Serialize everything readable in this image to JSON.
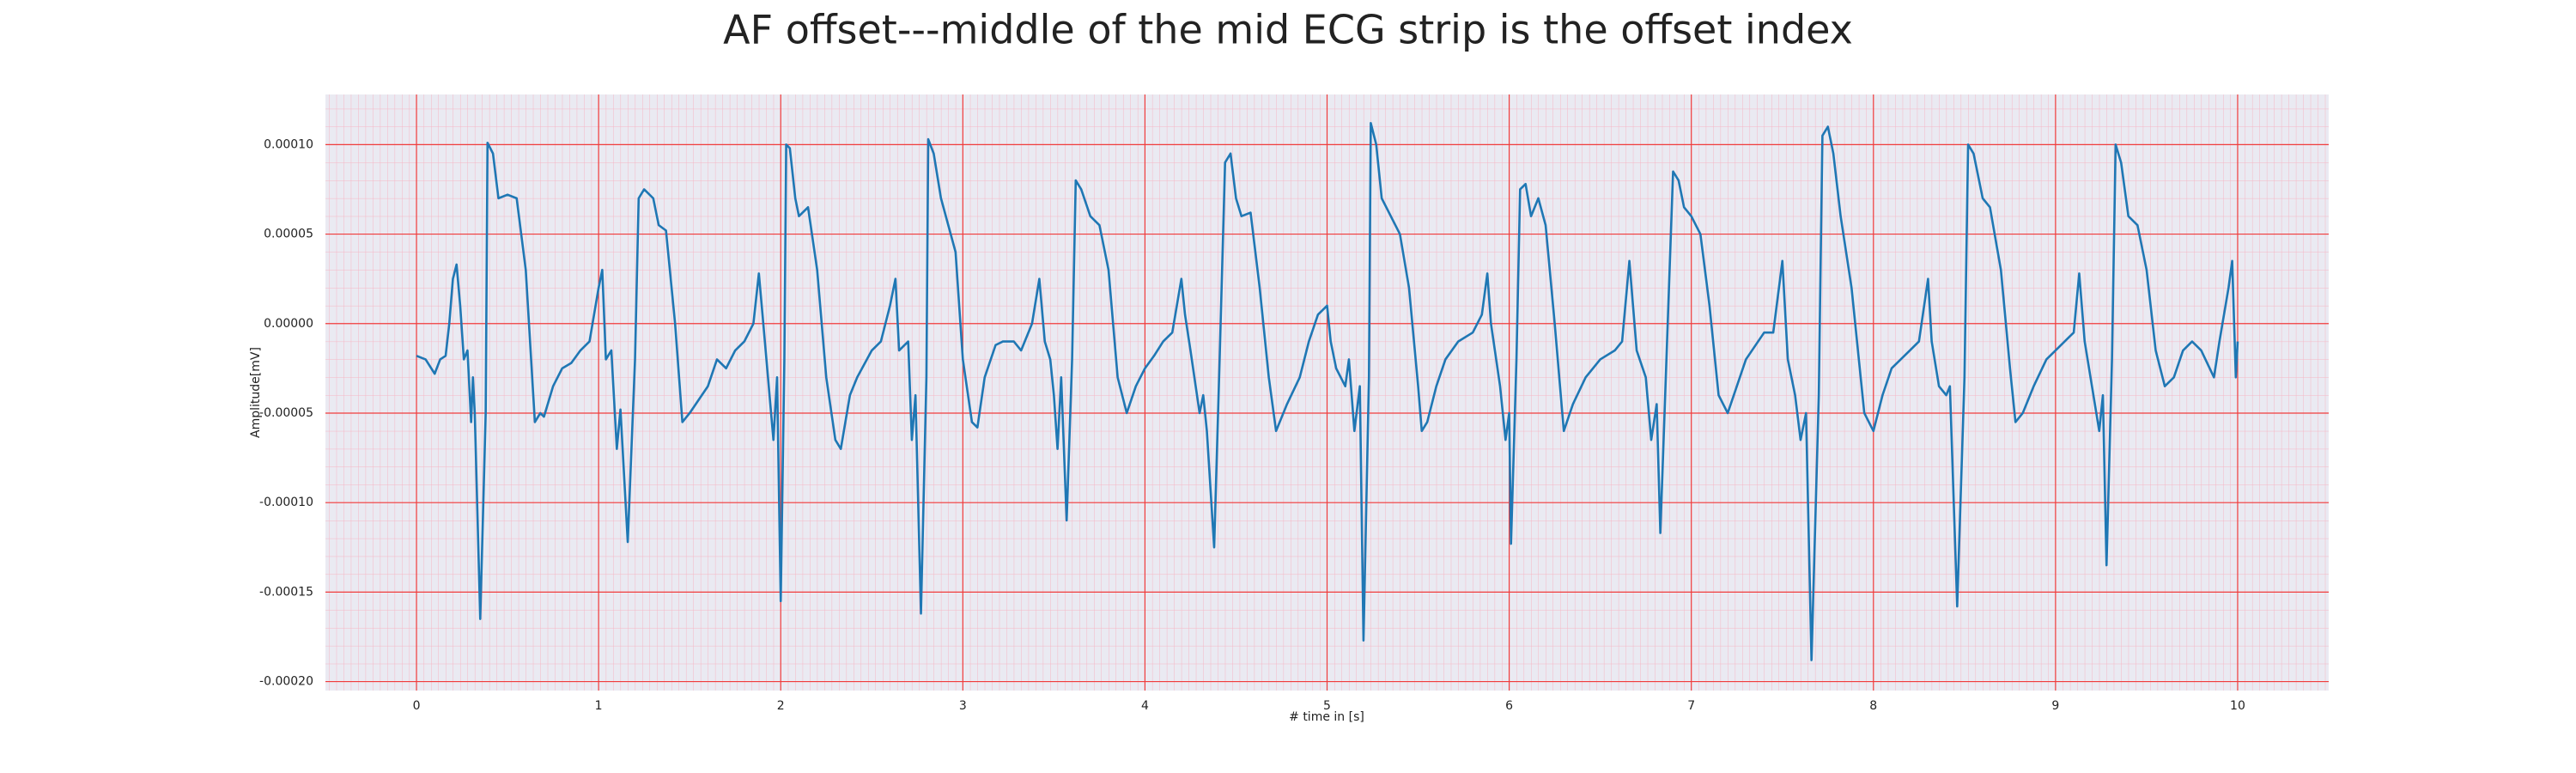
{
  "chart_data": {
    "type": "line",
    "title": "AF offset---middle of the mid ECG strip is the offset index",
    "x_label": "# time in [s]",
    "y_label": "Amplitude[mV]",
    "color": "#1f77b4",
    "grid": true,
    "minor_grid": true,
    "xlim": [
      -0.5,
      10.5
    ],
    "ylim": [
      -0.000205,
      0.000128
    ],
    "xticks": [
      0,
      1,
      2,
      3,
      4,
      5,
      6,
      7,
      8,
      9,
      10
    ],
    "yticks": [
      {
        "value": 0.0001,
        "label": "0.00010"
      },
      {
        "value": 5e-05,
        "label": "0.00005"
      },
      {
        "value": 0,
        "label": "0.00000"
      },
      {
        "value": -5e-05,
        "label": "-0.00005"
      },
      {
        "value": -0.0001,
        "label": "-0.00010"
      },
      {
        "value": -0.00015,
        "label": "-0.00015"
      },
      {
        "value": -0.0002,
        "label": "-0.00020"
      }
    ],
    "x": [
      0.0,
      0.05,
      0.1,
      0.13,
      0.16,
      0.18,
      0.2,
      0.22,
      0.24,
      0.26,
      0.28,
      0.3,
      0.31,
      0.32,
      0.35,
      0.38,
      0.39,
      0.42,
      0.45,
      0.5,
      0.55,
      0.6,
      0.65,
      0.68,
      0.7,
      0.75,
      0.8,
      0.85,
      0.9,
      0.95,
      1.0,
      1.02,
      1.04,
      1.07,
      1.1,
      1.12,
      1.16,
      1.2,
      1.22,
      1.25,
      1.3,
      1.33,
      1.37,
      1.42,
      1.46,
      1.5,
      1.6,
      1.65,
      1.7,
      1.75,
      1.8,
      1.85,
      1.88,
      1.9,
      1.93,
      1.96,
      1.98,
      2.0,
      2.02,
      2.03,
      2.05,
      2.08,
      2.1,
      2.15,
      2.2,
      2.25,
      2.3,
      2.33,
      2.38,
      2.42,
      2.5,
      2.55,
      2.6,
      2.63,
      2.65,
      2.7,
      2.72,
      2.74,
      2.77,
      2.8,
      2.81,
      2.84,
      2.88,
      2.92,
      2.96,
      3.0,
      3.05,
      3.08,
      3.12,
      3.18,
      3.22,
      3.28,
      3.32,
      3.38,
      3.42,
      3.45,
      3.48,
      3.5,
      3.52,
      3.54,
      3.57,
      3.6,
      3.62,
      3.65,
      3.7,
      3.75,
      3.8,
      3.85,
      3.9,
      3.95,
      4.0,
      4.05,
      4.1,
      4.15,
      4.2,
      4.22,
      4.25,
      4.3,
      4.32,
      4.34,
      4.38,
      4.41,
      4.44,
      4.47,
      4.5,
      4.53,
      4.58,
      4.63,
      4.68,
      4.72,
      4.78,
      4.85,
      4.9,
      4.95,
      5.0,
      5.02,
      5.05,
      5.1,
      5.12,
      5.15,
      5.18,
      5.2,
      5.23,
      5.24,
      5.27,
      5.3,
      5.35,
      5.4,
      5.45,
      5.5,
      5.52,
      5.55,
      5.6,
      5.65,
      5.72,
      5.8,
      5.85,
      5.88,
      5.9,
      5.95,
      5.98,
      6.0,
      6.01,
      6.04,
      6.06,
      6.09,
      6.12,
      6.16,
      6.2,
      6.25,
      6.3,
      6.35,
      6.42,
      6.5,
      6.58,
      6.62,
      6.66,
      6.7,
      6.75,
      6.78,
      6.81,
      6.83,
      6.86,
      6.9,
      6.93,
      6.96,
      7.0,
      7.05,
      7.1,
      7.15,
      7.2,
      7.3,
      7.4,
      7.45,
      7.5,
      7.53,
      7.57,
      7.6,
      7.63,
      7.66,
      7.7,
      7.72,
      7.75,
      7.78,
      7.82,
      7.88,
      7.95,
      8.0,
      8.05,
      8.1,
      8.2,
      8.25,
      8.3,
      8.32,
      8.36,
      8.4,
      8.42,
      8.46,
      8.5,
      8.52,
      8.55,
      8.6,
      8.64,
      8.7,
      8.75,
      8.78,
      8.82,
      8.88,
      8.95,
      9.0,
      9.05,
      9.1,
      9.13,
      9.16,
      9.2,
      9.24,
      9.26,
      9.28,
      9.31,
      9.33,
      9.36,
      9.4,
      9.45,
      9.5,
      9.55,
      9.6,
      9.65,
      9.7,
      9.75,
      9.8,
      9.87,
      9.9,
      9.95,
      9.97,
      9.99,
      10.0
    ],
    "values": [
      -1.8e-05,
      -2e-05,
      -2.8e-05,
      -2e-05,
      -1.8e-05,
      0.0,
      2.5e-05,
      3.3e-05,
      1e-05,
      -2e-05,
      -1.5e-05,
      -5.5e-05,
      -3e-05,
      -5e-05,
      -0.000165,
      -5e-05,
      0.000101,
      9.5e-05,
      7e-05,
      7.2e-05,
      7e-05,
      3e-05,
      -5.5e-05,
      -5e-05,
      -5.2e-05,
      -3.5e-05,
      -2.5e-05,
      -2.2e-05,
      -1.5e-05,
      -1e-05,
      2e-05,
      3e-05,
      -2e-05,
      -1.5e-05,
      -7e-05,
      -4.8e-05,
      -0.000122,
      -2e-05,
      7e-05,
      7.5e-05,
      7e-05,
      5.5e-05,
      5.2e-05,
      0.0,
      -5.5e-05,
      -5e-05,
      -3.5e-05,
      -2e-05,
      -2.5e-05,
      -1.5e-05,
      -1e-05,
      0.0,
      2.8e-05,
      5e-06,
      -3e-05,
      -6.5e-05,
      -3e-05,
      -0.000155,
      -2e-05,
      0.0001,
      9.8e-05,
      7e-05,
      6e-05,
      6.5e-05,
      3e-05,
      -3e-05,
      -6.5e-05,
      -7e-05,
      -4e-05,
      -3e-05,
      -1.5e-05,
      -1e-05,
      1e-05,
      2.5e-05,
      -1.5e-05,
      -1e-05,
      -6.5e-05,
      -4e-05,
      -0.000162,
      -3e-05,
      0.000103,
      9.5e-05,
      7e-05,
      5.5e-05,
      4e-05,
      -2e-05,
      -5.5e-05,
      -5.8e-05,
      -3e-05,
      -1.2e-05,
      -1e-05,
      -1e-05,
      -1.5e-05,
      0.0,
      2.5e-05,
      -1e-05,
      -2e-05,
      -4e-05,
      -7e-05,
      -3e-05,
      -0.00011,
      -2e-05,
      8e-05,
      7.5e-05,
      6e-05,
      5.5e-05,
      3e-05,
      -3e-05,
      -5e-05,
      -3.5e-05,
      -2.5e-05,
      -1.8e-05,
      -1e-05,
      -5e-06,
      2.5e-05,
      5e-06,
      -1.5e-05,
      -5e-05,
      -4e-05,
      -6e-05,
      -0.000125,
      -2e-05,
      9e-05,
      9.5e-05,
      7e-05,
      6e-05,
      6.2e-05,
      2e-05,
      -3e-05,
      -6e-05,
      -4.5e-05,
      -3e-05,
      -1e-05,
      5e-06,
      1e-05,
      -1e-05,
      -2.5e-05,
      -3.5e-05,
      -2e-05,
      -6e-05,
      -3.5e-05,
      -0.000177,
      -3e-05,
      0.000112,
      0.0001,
      7e-05,
      6e-05,
      5e-05,
      2e-05,
      -3.5e-05,
      -6e-05,
      -5.5e-05,
      -3.5e-05,
      -2e-05,
      -1e-05,
      -5e-06,
      5e-06,
      2.8e-05,
      0.0,
      -3.5e-05,
      -6.5e-05,
      -5e-05,
      -0.000123,
      -2e-05,
      7.5e-05,
      7.8e-05,
      6e-05,
      7e-05,
      5.5e-05,
      0.0,
      -6e-05,
      -4.5e-05,
      -3e-05,
      -2e-05,
      -1.5e-05,
      -1e-05,
      3.5e-05,
      -1.5e-05,
      -3e-05,
      -6.5e-05,
      -4.5e-05,
      -0.000117,
      -3e-05,
      8.5e-05,
      8e-05,
      6.5e-05,
      6e-05,
      5e-05,
      1e-05,
      -4e-05,
      -5e-05,
      -2e-05,
      -5e-06,
      -5e-06,
      3.5e-05,
      -2e-05,
      -4e-05,
      -6.5e-05,
      -5e-05,
      -0.000188,
      -4e-05,
      0.000105,
      0.00011,
      9.5e-05,
      6e-05,
      2e-05,
      -5e-05,
      -6e-05,
      -4e-05,
      -2.5e-05,
      -1.5e-05,
      -1e-05,
      2.5e-05,
      -1e-05,
      -3.5e-05,
      -4e-05,
      -3.5e-05,
      -0.000158,
      -3e-05,
      0.0001,
      9.5e-05,
      7e-05,
      6.5e-05,
      3e-05,
      -2.5e-05,
      -5.5e-05,
      -5e-05,
      -3.5e-05,
      -2e-05,
      -1.5e-05,
      -1e-05,
      -5e-06,
      2.8e-05,
      -1e-05,
      -3.5e-05,
      -6e-05,
      -4e-05,
      -0.000135,
      -2e-05,
      0.0001,
      9e-05,
      6e-05,
      5.5e-05,
      3e-05,
      -1.5e-05,
      -3.5e-05,
      -3e-05,
      -1.5e-05,
      -1e-05,
      -1.5e-05,
      -3e-05,
      -1e-05,
      2e-05,
      3.5e-05,
      -3e-05,
      -1e-05
    ]
  }
}
